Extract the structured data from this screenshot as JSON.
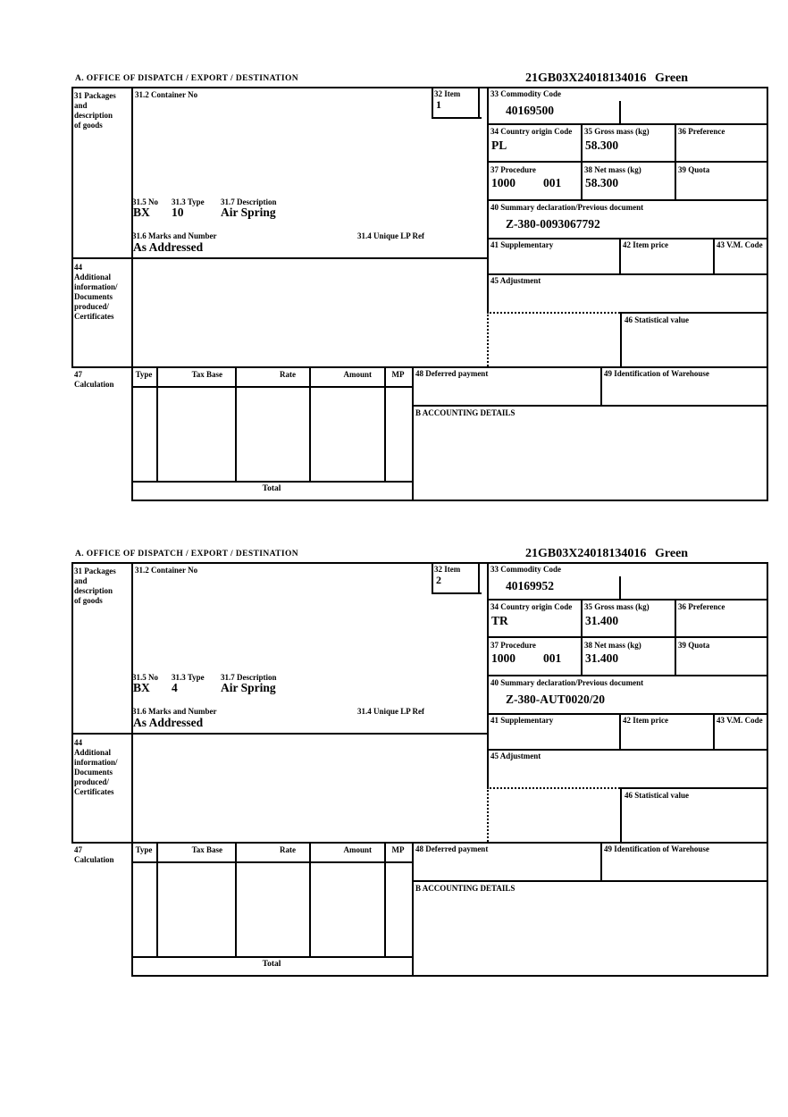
{
  "labels": {
    "section_a": "A.  OFFICE OF DISPATCH / EXPORT / DESTINATION",
    "section_b": "B ACCOUNTING DETAILS",
    "box31": "31 Packages\nand\ndescription\nof goods",
    "box31_2": "31.2 Container No",
    "box31_5": "31.5 No",
    "box31_3": "31.3 Type",
    "box31_7": "31.7 Description",
    "box31_6": "31.6 Marks and Number",
    "box31_4": "31.4 Unique LP Ref",
    "box32": "32 Item",
    "box33": "33 Commodity Code",
    "box34": "34 Country origin Code",
    "box35": "35 Gross mass (kg)",
    "box36": "36 Preference",
    "box37": "37 Procedure",
    "box38": "38 Net mass (kg)",
    "box39": "39 Quota",
    "box40": "40 Summary declaration/Previous document",
    "box41": "41 Supplementary",
    "box42": "42 Item price",
    "box43": "43 V.M. Code",
    "box44": "44\nAdditional\ninformation/\nDocuments\nproduced/\nCertificates",
    "box45": "45 Adjustment",
    "box46": "46 Statistical value",
    "box47": "47\nCalculation",
    "box48": "48 Deferred payment",
    "box49": "49 Identification of Warehouse",
    "table": {
      "type": "Type",
      "tax_base": "Tax Base",
      "rate": "Rate",
      "amount": "Amount",
      "mp": "MP",
      "total": "Total"
    }
  },
  "forms": [
    {
      "reference": "21GB03X24018134016",
      "routing": "Green",
      "item": "1",
      "commodity_code": "40169500",
      "country_origin": "PL",
      "gross_mass": "58.300",
      "procedure_1": "1000",
      "procedure_2": "001",
      "net_mass": "58.300",
      "summary_declaration": "Z-380-0093067792",
      "packages_no": "BX",
      "packages_type": "10",
      "description": "Air Spring",
      "marks": "As Addressed"
    },
    {
      "reference": "21GB03X24018134016",
      "routing": "Green",
      "item": "2",
      "commodity_code": "40169952",
      "country_origin": "TR",
      "gross_mass": "31.400",
      "procedure_1": "1000",
      "procedure_2": "001",
      "net_mass": "31.400",
      "summary_declaration": "Z-380-AUT0020/20",
      "packages_no": "BX",
      "packages_type": "4",
      "description": "Air Spring",
      "marks": "As Addressed"
    }
  ]
}
